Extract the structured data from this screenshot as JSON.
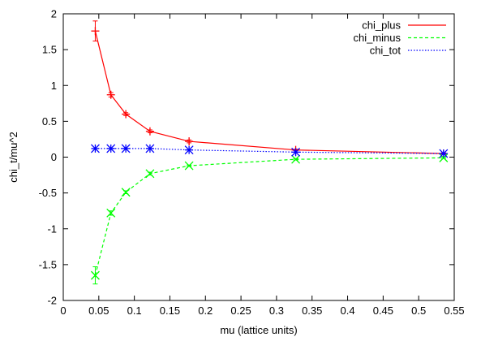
{
  "chart_data": {
    "type": "line",
    "title": "",
    "xlabel": "mu (lattice units)",
    "ylabel": "chi_t/mu^2",
    "xlim": [
      0,
      0.55
    ],
    "ylim": [
      -2,
      2
    ],
    "x_ticks": [
      0,
      0.05,
      0.1,
      0.15,
      0.2,
      0.25,
      0.3,
      0.35,
      0.4,
      0.45,
      0.5,
      0.55
    ],
    "x_tick_labels": [
      "0",
      "0.05",
      "0.1",
      "0.15",
      "0.2",
      "0.25",
      "0.3",
      "0.35",
      "0.4",
      "0.45",
      "0.5",
      "0.55"
    ],
    "y_ticks": [
      -2,
      -1.5,
      -1,
      -0.5,
      0,
      0.5,
      1,
      1.5,
      2
    ],
    "y_tick_labels": [
      "-2",
      "-1.5",
      "-1",
      "-0.5",
      "0",
      "0.5",
      "1",
      "1.5",
      "2"
    ],
    "grid": false,
    "legend_position": "top-right",
    "series": [
      {
        "name": "chi_plus",
        "color": "#ff0000",
        "line_style": "solid",
        "marker": "plus",
        "x": [
          0.045,
          0.067,
          0.088,
          0.122,
          0.177,
          0.327,
          0.535
        ],
        "y": [
          1.76,
          0.87,
          0.6,
          0.36,
          0.22,
          0.1,
          0.05
        ],
        "yerr": [
          0.14,
          0.03,
          0.02,
          0.02,
          0.02,
          0.01,
          0.01
        ]
      },
      {
        "name": "chi_minus",
        "color": "#00ff00",
        "line_style": "dashed",
        "marker": "cross",
        "x": [
          0.045,
          0.067,
          0.088,
          0.122,
          0.177,
          0.327,
          0.535
        ],
        "y": [
          -1.65,
          -0.78,
          -0.49,
          -0.23,
          -0.12,
          -0.03,
          -0.01
        ],
        "yerr": [
          0.12,
          0.03,
          0.02,
          0.02,
          0.01,
          0.01,
          0.01
        ]
      },
      {
        "name": "chi_tot",
        "color": "#0000ff",
        "line_style": "dotted",
        "marker": "star",
        "x": [
          0.045,
          0.067,
          0.088,
          0.122,
          0.177,
          0.327,
          0.535
        ],
        "y": [
          0.12,
          0.12,
          0.12,
          0.12,
          0.1,
          0.07,
          0.05
        ],
        "yerr": [
          0,
          0,
          0,
          0,
          0,
          0,
          0
        ]
      }
    ]
  }
}
